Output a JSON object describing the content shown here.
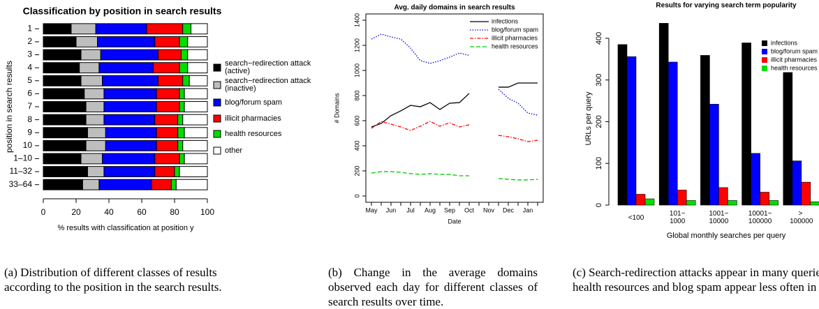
{
  "chart_data": [
    {
      "type": "hbarstack",
      "title": "Classification by position in search results",
      "xlabel": "% results with classification at position y",
      "ylabel": "position in search results",
      "caption": "(a) Distribution of different classes of results according to the position in the search results.",
      "categories": [
        "1",
        "2",
        "3",
        "4",
        "5",
        "6",
        "7",
        "8",
        "9",
        "10",
        "1–10",
        "11–32",
        "33–64"
      ],
      "series": [
        {
          "name": "search−redirection attack (active)",
          "color": "#000000",
          "values": [
            17,
            20,
            23,
            22,
            23,
            25,
            26,
            26,
            27,
            26,
            23,
            27,
            24
          ]
        },
        {
          "name": "search−redirection attack (inactive)",
          "color": "#bebebe",
          "values": [
            15,
            13,
            12,
            12,
            13,
            12,
            11,
            11,
            11,
            12,
            13,
            10,
            10
          ]
        },
        {
          "name": "blog/forum spam",
          "color": "#0000ff",
          "values": [
            31,
            35,
            35,
            33,
            34,
            32,
            32,
            31,
            31,
            31,
            32,
            31,
            32
          ]
        },
        {
          "name": "illicit pharmacies",
          "color": "#ff0000",
          "values": [
            22,
            15,
            14,
            16,
            15,
            14,
            14,
            14,
            13,
            13,
            15,
            12,
            12
          ]
        },
        {
          "name": "health resources",
          "color": "#00dd00",
          "values": [
            5,
            5,
            4,
            5,
            4,
            3,
            3,
            3,
            4,
            3,
            3,
            3,
            3
          ]
        },
        {
          "name": "other",
          "color": "#ffffff",
          "values": [
            10,
            12,
            12,
            12,
            11,
            14,
            14,
            15,
            14,
            15,
            14,
            17,
            19
          ]
        }
      ],
      "xlim": [
        0,
        100
      ],
      "xticks": [
        0,
        20,
        40,
        60,
        80,
        100
      ]
    },
    {
      "type": "line",
      "title": "Avg. daily domains in search results",
      "xlabel": "Date",
      "ylabel": "# Domains",
      "caption": "(b) Change in the average domains observed each day for different classes of search results over time.",
      "x": [
        "May",
        null,
        "Jun",
        null,
        "Jul",
        null,
        "Aug",
        null,
        "Sep",
        null,
        "Oct",
        null,
        "Nov",
        null,
        "Dec",
        null,
        "Jan",
        null
      ],
      "series": [
        {
          "name": "infections",
          "color": "#000000",
          "linestyle": "solid",
          "values": [
            550,
            578,
            640,
            678,
            722,
            711,
            744,
            689,
            739,
            744,
            817,
            null,
            null,
            867,
            867,
            900,
            900,
            900
          ]
        },
        {
          "name": "blog/forum spam",
          "color": "#0000cc",
          "linestyle": "dotted",
          "values": [
            1250,
            1289,
            1267,
            1250,
            1178,
            1078,
            1056,
            1078,
            1106,
            1139,
            1120,
            null,
            null,
            850,
            778,
            739,
            661,
            644
          ]
        },
        {
          "name": "illicit pharmacies",
          "color": "#ff0000",
          "linestyle": "dashdot",
          "values": [
            539,
            594,
            572,
            550,
            522,
            556,
            594,
            556,
            583,
            550,
            567,
            null,
            null,
            483,
            472,
            456,
            433,
            444
          ]
        },
        {
          "name": "health resources",
          "color": "#00cc00",
          "linestyle": "dashed",
          "values": [
            183,
            194,
            194,
            189,
            178,
            172,
            178,
            172,
            172,
            161,
            161,
            null,
            null,
            139,
            133,
            128,
            128,
            133
          ]
        }
      ],
      "ylim": [
        -50,
        1450
      ],
      "yticks": [
        0,
        200,
        400,
        600,
        800,
        1000,
        1200,
        1400
      ],
      "legend": "top-right"
    },
    {
      "type": "bar",
      "title": "Results for varying search term popularity",
      "xlabel": "Global monthly searches per query",
      "ylabel": "URLs per query",
      "caption": "(c) Search-redirection attacks appear in many queries; health resources and blog spam appear less often in popular queries.",
      "categories": [
        "<100",
        "101−1000",
        "1001−10000",
        "10001−100000",
        "> 100000"
      ],
      "series": [
        {
          "name": "infections",
          "color": "#000000",
          "values": [
            385,
            436,
            359,
            389,
            318
          ]
        },
        {
          "name": "blog/forum spam",
          "color": "#0000ff",
          "values": [
            356,
            343,
            242,
            124,
            106
          ]
        },
        {
          "name": "illicit pharmacies",
          "color": "#ff0000",
          "values": [
            26,
            36,
            42,
            31,
            55
          ]
        },
        {
          "name": "health resources",
          "color": "#00dd00",
          "values": [
            15,
            11,
            11,
            11,
            8
          ]
        }
      ],
      "ylim": [
        -10,
        445
      ],
      "yticks": [
        0,
        100,
        200,
        300,
        400
      ],
      "legend": "top-right"
    }
  ]
}
